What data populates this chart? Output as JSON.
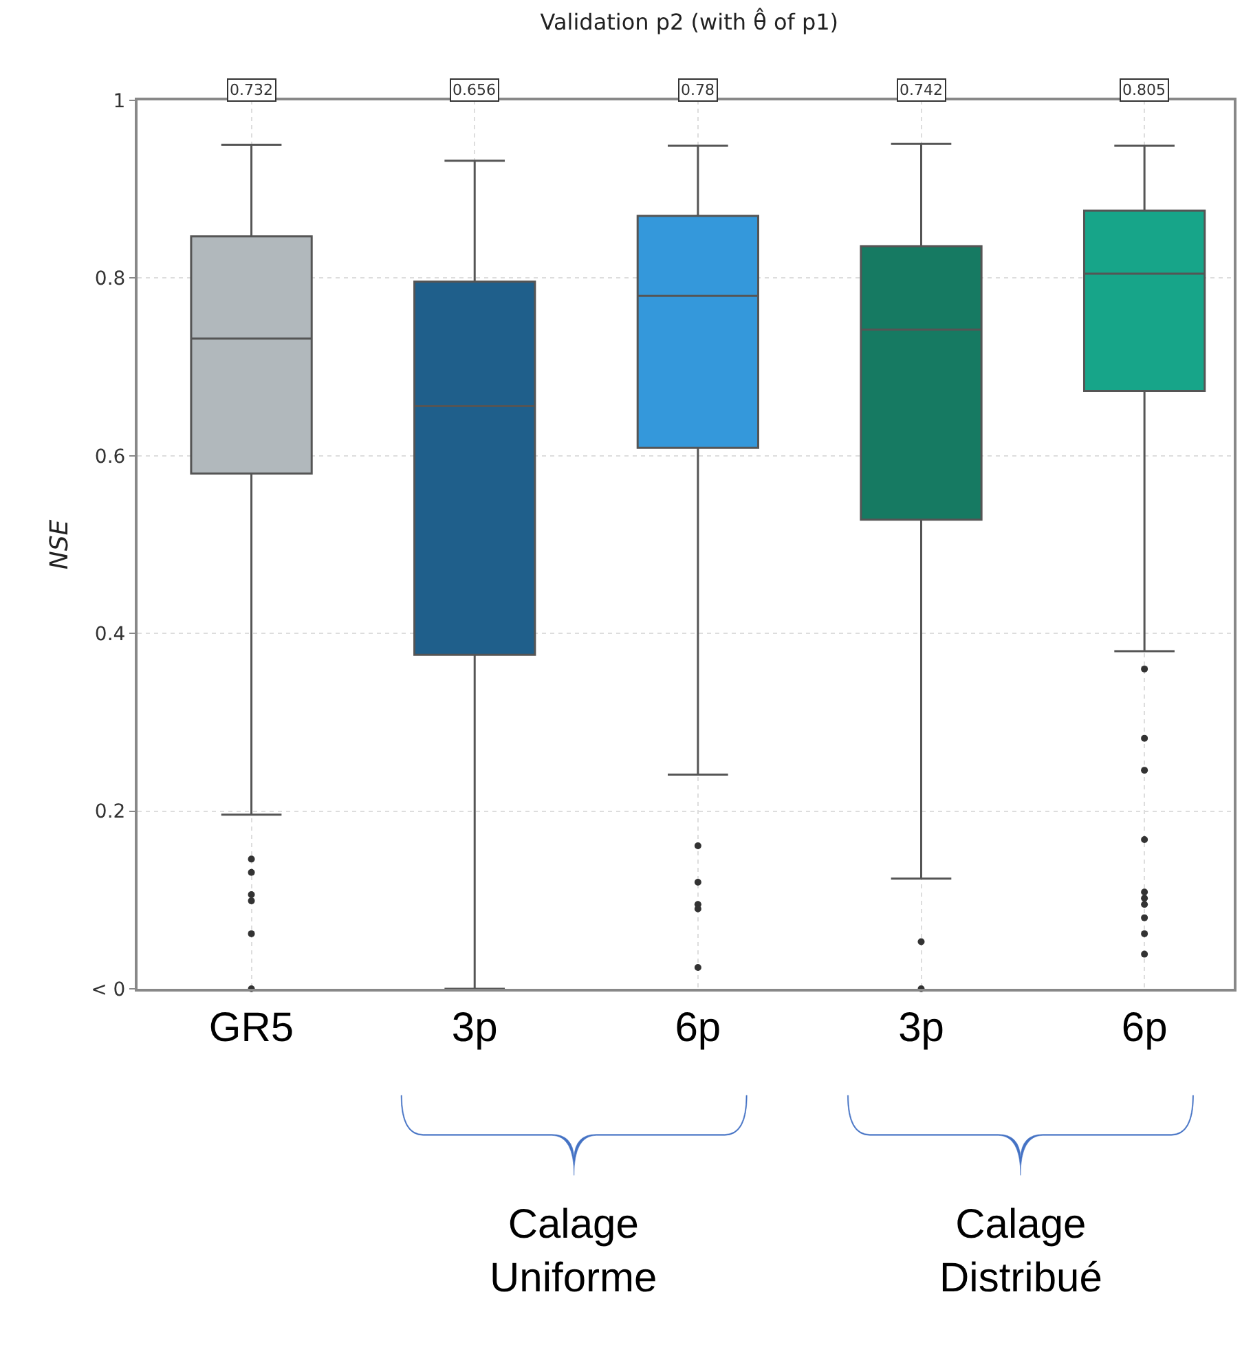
{
  "chart_data": {
    "type": "box",
    "title": "Validation p2 (with θ̂ of p1)",
    "ylabel": "NSE",
    "categories": [
      "GR5",
      "3p",
      "6p",
      "3p",
      "6p"
    ],
    "colors": [
      "#b1b8bc",
      "#1f5f8b",
      "#3498db",
      "#167a62",
      "#17a589"
    ],
    "boxes": [
      {
        "low": 0.196,
        "q1": 0.58,
        "median": 0.732,
        "q3": 0.847,
        "high": 0.95,
        "outliers": [
          0.146,
          0.131,
          0.106,
          0.099,
          0.062,
          0.0
        ]
      },
      {
        "low": 0.0,
        "q1": 0.376,
        "median": 0.656,
        "q3": 0.796,
        "high": 0.932
      },
      {
        "low": 0.241,
        "q1": 0.609,
        "median": 0.78,
        "q3": 0.87,
        "high": 0.949,
        "outliers": [
          0.161,
          0.12,
          0.095,
          0.09,
          0.024
        ]
      },
      {
        "low": 0.124,
        "q1": 0.528,
        "median": 0.742,
        "q3": 0.836,
        "high": 0.951,
        "outliers": [
          0.053,
          0.0
        ]
      },
      {
        "low": 0.38,
        "q1": 0.673,
        "median": 0.805,
        "q3": 0.876,
        "high": 0.949,
        "outliers": [
          0.36,
          0.282,
          0.246,
          0.168,
          0.109,
          0.102,
          0.095,
          0.08,
          0.062,
          0.039
        ]
      }
    ],
    "ylim": [
      0,
      1
    ],
    "yticks": [
      {
        "value": 0,
        "label": "< 0"
      },
      0.2,
      0.4,
      0.6,
      0.8,
      1
    ],
    "value_labels": [
      "0.732",
      "0.656",
      "0.78",
      "0.742",
      "0.805"
    ],
    "grid": true,
    "annotations": [
      "Calage\nUniforme",
      "Calage\nDistribué"
    ]
  }
}
